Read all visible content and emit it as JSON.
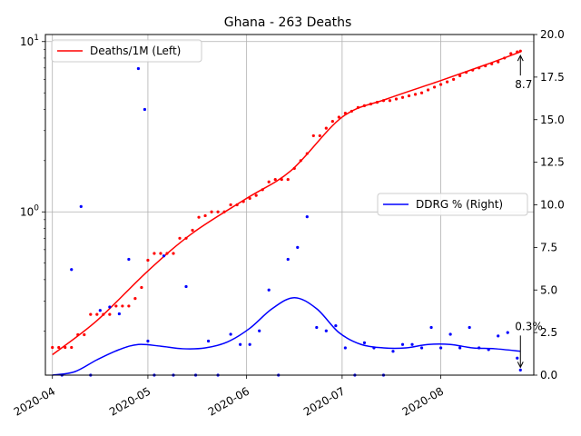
{
  "chart_data": {
    "type": "line",
    "title": "Ghana - 263 Deaths",
    "xlabel": "",
    "x_ticks": [
      "2020-04",
      "2020-05",
      "2020-06",
      "2020-07",
      "2020-08"
    ],
    "x_range": [
      "2020-04-01",
      "2020-08-28"
    ],
    "grid": true,
    "left_axis": {
      "scale": "log",
      "range": [
        0.11,
        11
      ],
      "ticks": [
        {
          "value": 1,
          "label": "10^0"
        },
        {
          "value": 10,
          "label": "10^1"
        }
      ]
    },
    "right_axis": {
      "scale": "linear",
      "range": [
        0,
        20
      ],
      "ticks": [
        "0.0",
        "2.5",
        "5.0",
        "7.5",
        "10.0",
        "12.5",
        "15.0",
        "17.5",
        "20.0"
      ]
    },
    "legends": [
      {
        "label": "Deaths/1M (Left)",
        "color": "#ff0000",
        "placement": "upper-left"
      },
      {
        "label": "DDRG % (Right)",
        "color": "#0000ff",
        "placement": "center-right"
      }
    ],
    "series": [
      {
        "name": "Deaths/1M (Left)",
        "axis": "left",
        "color": "#ff0000",
        "style": "line",
        "x": [
          "2020-04-01",
          "2020-04-15",
          "2020-05-01",
          "2020-05-15",
          "2020-06-01",
          "2020-06-15",
          "2020-07-01",
          "2020-07-15",
          "2020-08-01",
          "2020-08-15",
          "2020-08-26"
        ],
        "y": [
          0.145,
          0.23,
          0.45,
          0.75,
          1.2,
          1.75,
          3.6,
          4.6,
          5.9,
          7.3,
          8.7
        ]
      },
      {
        "name": "Deaths/1M points",
        "axis": "left",
        "color": "#ff0000",
        "style": "points",
        "x": [
          "2020-04-01",
          "2020-04-03",
          "2020-04-05",
          "2020-04-07",
          "2020-04-09",
          "2020-04-11",
          "2020-04-13",
          "2020-04-15",
          "2020-04-17",
          "2020-04-19",
          "2020-04-21",
          "2020-04-23",
          "2020-04-25",
          "2020-04-27",
          "2020-04-29",
          "2020-05-01",
          "2020-05-03",
          "2020-05-05",
          "2020-05-07",
          "2020-05-09",
          "2020-05-11",
          "2020-05-13",
          "2020-05-15",
          "2020-05-17",
          "2020-05-19",
          "2020-05-21",
          "2020-05-23",
          "2020-05-25",
          "2020-05-27",
          "2020-05-29",
          "2020-05-31",
          "2020-06-02",
          "2020-06-04",
          "2020-06-06",
          "2020-06-08",
          "2020-06-10",
          "2020-06-12",
          "2020-06-14",
          "2020-06-16",
          "2020-06-18",
          "2020-06-20",
          "2020-06-22",
          "2020-06-24",
          "2020-06-26",
          "2020-06-28",
          "2020-06-30",
          "2020-07-02",
          "2020-07-04",
          "2020-07-06",
          "2020-07-08",
          "2020-07-10",
          "2020-07-12",
          "2020-07-14",
          "2020-07-16",
          "2020-07-18",
          "2020-07-20",
          "2020-07-22",
          "2020-07-24",
          "2020-07-26",
          "2020-07-28",
          "2020-07-30",
          "2020-08-01",
          "2020-08-03",
          "2020-08-05",
          "2020-08-07",
          "2020-08-09",
          "2020-08-11",
          "2020-08-13",
          "2020-08-15",
          "2020-08-17",
          "2020-08-19",
          "2020-08-21",
          "2020-08-23",
          "2020-08-25",
          "2020-08-26"
        ],
        "y": [
          0.16,
          0.16,
          0.16,
          0.16,
          0.19,
          0.19,
          0.25,
          0.25,
          0.25,
          0.25,
          0.28,
          0.28,
          0.28,
          0.31,
          0.36,
          0.52,
          0.57,
          0.57,
          0.57,
          0.57,
          0.7,
          0.7,
          0.78,
          0.93,
          0.95,
          1.0,
          1.0,
          1.0,
          1.1,
          1.1,
          1.15,
          1.2,
          1.25,
          1.35,
          1.5,
          1.55,
          1.55,
          1.55,
          1.8,
          2.0,
          2.2,
          2.8,
          2.8,
          3.1,
          3.4,
          3.6,
          3.8,
          3.9,
          4.1,
          4.2,
          4.3,
          4.4,
          4.5,
          4.5,
          4.6,
          4.7,
          4.8,
          4.9,
          5.0,
          5.2,
          5.4,
          5.6,
          5.8,
          6.0,
          6.3,
          6.6,
          6.8,
          7.0,
          7.2,
          7.4,
          7.6,
          8.0,
          8.5,
          8.7,
          8.8
        ]
      },
      {
        "name": "DDRG % (Right)",
        "axis": "right",
        "color": "#0000ff",
        "style": "line",
        "x": [
          "2020-04-01",
          "2020-04-08",
          "2020-04-15",
          "2020-04-22",
          "2020-04-28",
          "2020-05-05",
          "2020-05-12",
          "2020-05-19",
          "2020-05-26",
          "2020-06-02",
          "2020-06-09",
          "2020-06-16",
          "2020-06-23",
          "2020-06-30",
          "2020-07-07",
          "2020-07-14",
          "2020-07-21",
          "2020-07-28",
          "2020-08-04",
          "2020-08-11",
          "2020-08-18",
          "2020-08-26"
        ],
        "y": [
          0.0,
          0.2,
          0.9,
          1.5,
          1.8,
          1.7,
          1.55,
          1.6,
          1.95,
          2.75,
          3.9,
          4.55,
          3.9,
          2.5,
          1.8,
          1.6,
          1.6,
          1.8,
          1.8,
          1.6,
          1.55,
          1.4
        ]
      },
      {
        "name": "DDRG points",
        "axis": "right",
        "color": "#0000ff",
        "style": "points",
        "x": [
          "2020-04-04",
          "2020-04-07",
          "2020-04-10",
          "2020-04-13",
          "2020-04-16",
          "2020-04-19",
          "2020-04-22",
          "2020-04-25",
          "2020-04-28",
          "2020-04-30",
          "2020-05-01",
          "2020-05-03",
          "2020-05-06",
          "2020-05-09",
          "2020-05-13",
          "2020-05-16",
          "2020-05-20",
          "2020-05-23",
          "2020-05-27",
          "2020-05-30",
          "2020-06-02",
          "2020-06-05",
          "2020-06-08",
          "2020-06-11",
          "2020-06-14",
          "2020-06-17",
          "2020-06-20",
          "2020-06-23",
          "2020-06-26",
          "2020-06-29",
          "2020-07-02",
          "2020-07-05",
          "2020-07-08",
          "2020-07-11",
          "2020-07-14",
          "2020-07-17",
          "2020-07-20",
          "2020-07-23",
          "2020-07-26",
          "2020-07-29",
          "2020-08-01",
          "2020-08-04",
          "2020-08-07",
          "2020-08-10",
          "2020-08-13",
          "2020-08-16",
          "2020-08-19",
          "2020-08-22",
          "2020-08-25",
          "2020-08-26"
        ],
        "y": [
          0.0,
          6.2,
          9.9,
          0.0,
          3.8,
          4.0,
          3.6,
          6.8,
          18.0,
          15.6,
          2.0,
          0.0,
          7.0,
          0.0,
          5.2,
          0.0,
          2.0,
          0.0,
          2.4,
          1.8,
          1.8,
          2.6,
          5.0,
          0.0,
          6.8,
          7.5,
          9.3,
          2.8,
          2.6,
          2.9,
          1.6,
          0.0,
          1.9,
          1.6,
          0.0,
          1.4,
          1.8,
          1.8,
          1.6,
          2.8,
          1.6,
          2.4,
          1.6,
          2.8,
          1.6,
          1.5,
          2.3,
          2.5,
          1.0,
          0.3
        ]
      }
    ],
    "annotations": [
      {
        "text": "8.7",
        "target_series": "Deaths/1M (Left)",
        "x": "2020-08-26",
        "y": 8.7
      },
      {
        "text": "0.3%",
        "target_series": "DDRG % (Right)",
        "x": "2020-08-26",
        "y": 0.3
      }
    ]
  }
}
